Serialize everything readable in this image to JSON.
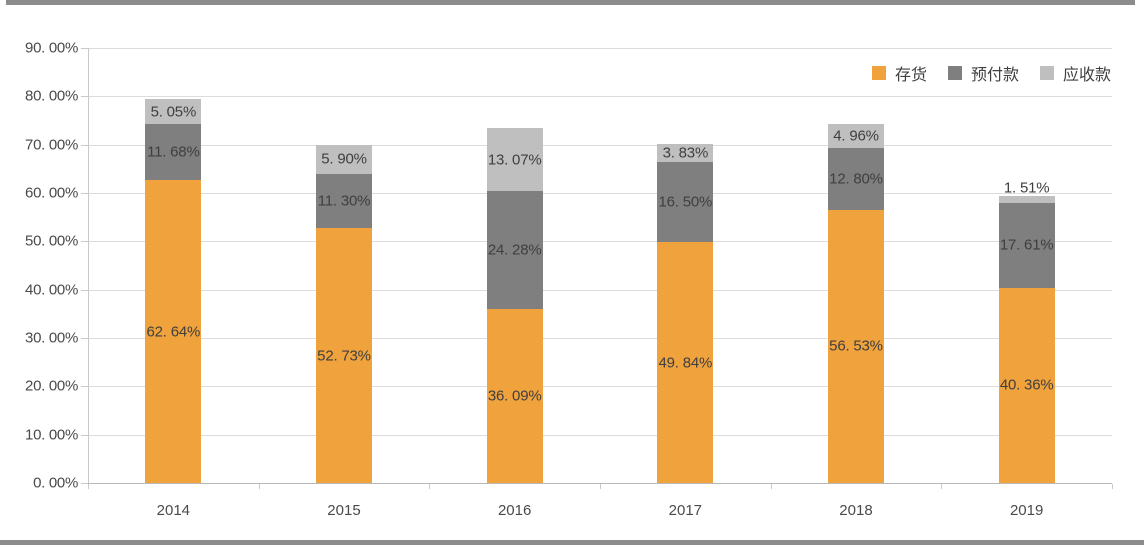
{
  "frame": {
    "top_bar_color": "#8c8c8c",
    "bottom_bar_color": "#8c8c8c",
    "background": "#ffffff"
  },
  "chart_data": {
    "type": "bar",
    "stacked": true,
    "title": "",
    "categories": [
      "2014",
      "2015",
      "2016",
      "2017",
      "2018",
      "2019"
    ],
    "series": [
      {
        "key": "inventory",
        "name": "存货",
        "color": "#f0a23c",
        "values": [
          62.64,
          52.73,
          36.09,
          49.84,
          56.53,
          40.36
        ],
        "labels": [
          "62. 64%",
          "52. 73%",
          "36. 09%",
          "49. 84%",
          "56. 53%",
          "40. 36%"
        ]
      },
      {
        "key": "prepayments",
        "name": "预付款",
        "color": "#7f7f7f",
        "values": [
          11.68,
          11.3,
          24.28,
          16.5,
          12.8,
          17.61
        ],
        "labels": [
          "11. 68%",
          "11. 30%",
          "24. 28%",
          "16. 50%",
          "12. 80%",
          "17. 61%"
        ]
      },
      {
        "key": "receivables",
        "name": "应收款",
        "color": "#bfbfbf",
        "values": [
          5.05,
          5.9,
          13.07,
          3.83,
          4.96,
          1.51
        ],
        "labels": [
          "5. 05%",
          "5. 90%",
          "13. 07%",
          "3. 83%",
          "4. 96%",
          "1. 51%"
        ]
      }
    ],
    "y_axis": {
      "min": 0,
      "max": 90,
      "step": 10,
      "tick_labels": [
        "0. 00%",
        "10. 00%",
        "20. 00%",
        "30. 00%",
        "40. 00%",
        "50. 00%",
        "60. 00%",
        "70. 00%",
        "80. 00%",
        "90. 00%"
      ]
    },
    "x_axis": {
      "tick_marks": true
    },
    "legend": {
      "position": "top-right"
    },
    "grid": true,
    "grid_color": "#dcdcdc",
    "label_color": "#3f3f3f"
  }
}
